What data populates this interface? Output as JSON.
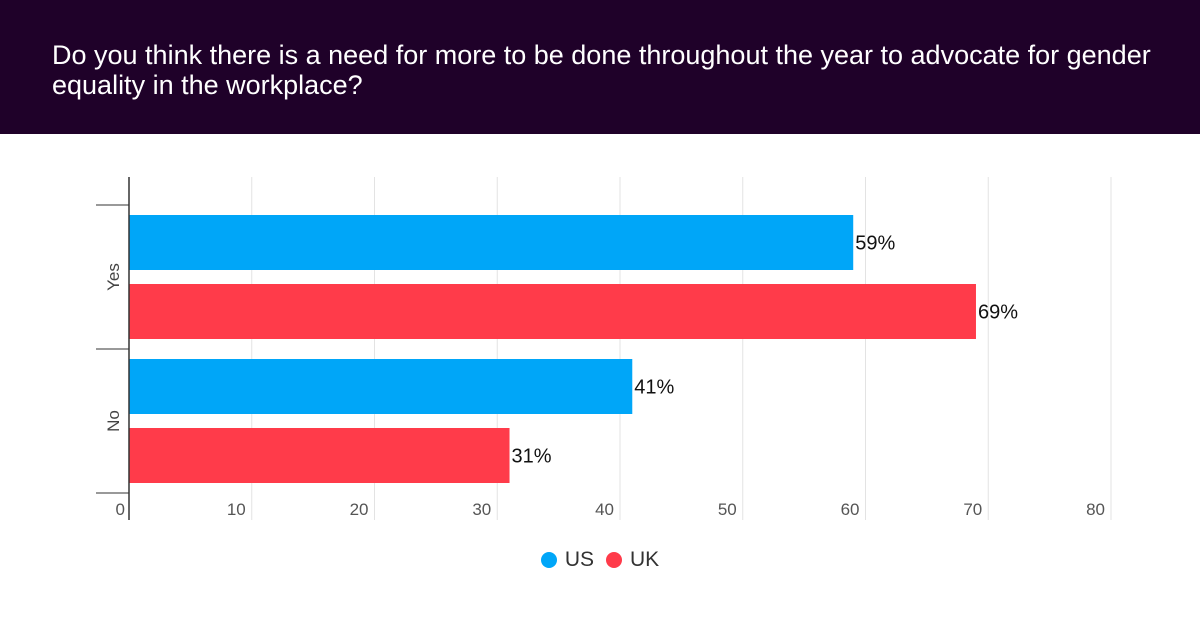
{
  "title": "Do you think there is a need for more to be done throughout the year to advocate for gender equality in the workplace?",
  "colors": {
    "header_bg": "#1f0129",
    "US": "#00a6f8",
    "UK": "#ff3b4a"
  },
  "chart_data": {
    "type": "bar",
    "orientation": "horizontal",
    "title": "Do you think there is a need for more to be done throughout the year to advocate for gender equality in the workplace?",
    "categories": [
      "Yes",
      "No"
    ],
    "series": [
      {
        "name": "US",
        "values": [
          59,
          41
        ],
        "labels": [
          "59%",
          "41%"
        ],
        "color": "#00a6f8"
      },
      {
        "name": "UK",
        "values": [
          69,
          31
        ],
        "labels": [
          "69%",
          "31%"
        ],
        "color": "#ff3b4a"
      }
    ],
    "xlim": [
      0,
      80
    ],
    "xticks": [
      0,
      10,
      20,
      30,
      40,
      50,
      60,
      70,
      80
    ],
    "grid": true,
    "legend": "bottom-center",
    "xlabel": "",
    "ylabel": ""
  },
  "legend": [
    {
      "label": "US",
      "color": "#00a6f8"
    },
    {
      "label": "UK",
      "color": "#ff3b4a"
    }
  ]
}
